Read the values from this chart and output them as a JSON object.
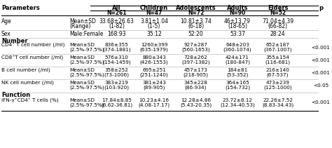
{
  "title": "Parameters",
  "columns": [
    "",
    "",
    "All",
    "Children",
    "Adolescents",
    "Adults",
    "Elders",
    "p"
  ],
  "col1_header": "All",
  "col2_header": "Children",
  "col3_header": "Adolescents",
  "col4_header": "Adults",
  "col5_header": "Elders",
  "n_row": [
    "N=261",
    "N=47",
    "N=72",
    "N=90",
    "N=52"
  ],
  "rows": [
    {
      "label": "Age",
      "sub1": "Mean±SD",
      "sub2": "(Range)",
      "vals1": [
        "33.68±26.63",
        "3.81±1.04",
        "10.81±3.74",
        "46±13.79",
        "71.04±4.39"
      ],
      "vals2": [
        "(1-82)",
        "(1-5)",
        "(6-18)",
        "(18-65)",
        "(66-82)"
      ],
      "p": ""
    },
    {
      "label": "Sex",
      "sub1": "Male:Female",
      "sub2": "",
      "vals1": [
        "168:93",
        "35:12",
        "52:20",
        "53:37",
        "28:24"
      ],
      "vals2": [
        "",
        "",
        "",
        "",
        ""
      ],
      "p": ""
    },
    {
      "section": "Number"
    },
    {
      "label": "CD4⁺ T cell number (/ml)",
      "sub1": "Mean±SD",
      "sub2": "(2.5%-97.5%)",
      "vals1": [
        "836±355",
        "1260±399",
        "927±287",
        "648±203",
        "652±187"
      ],
      "vals2": [
        "(374-1881)",
        "(635-1979)",
        "(560-1653)",
        "(360-1074)",
        "(367-1007)"
      ],
      "p": "<0.001"
    },
    {
      "label": "CD8⁺T cell number (/ml)",
      "sub1": "Mean±SD",
      "sub2": "(2.5%-97.5%)",
      "vals1": [
        "576±310",
        "880±343",
        "728±262",
        "424±171",
        "355±154"
      ],
      "vals2": [
        "(154-1459)",
        "(426-1553)",
        "(397-1382)",
        "(180-847)",
        "(116-681)"
      ],
      "p": "<0.001"
    },
    {
      "label": "B cell number (/ml)",
      "sub1": "Mean±SD",
      "sub2": "(2.5%-97.5%)",
      "vals1": [
        "358±252",
        "695±251",
        "457±173",
        "184±81",
        "216±140"
      ],
      "vals2": [
        "(73-1006)",
        "(251-1240)",
        "(218-905)",
        "(53-352)",
        "(67-537)"
      ],
      "p": "<0.001"
    },
    {
      "label": "NK cell number (/ml)",
      "sub1": "Mean±SD",
      "sub2": "(2.5%-97.5%)",
      "vals1": [
        "383±219",
        "381±243",
        "345±228",
        "364±165",
        "473±239"
      ],
      "vals2": [
        "(103-920)",
        "(89-905)",
        "(86-934)",
        "(154-732)",
        "(125-1000)"
      ],
      "p": "<0.05"
    },
    {
      "section": "Function"
    },
    {
      "label": "IFN-γ⁺CD4⁺ T cells (%)",
      "sub1": "Mean±SD",
      "sub2": "(2.5%-97.5%)",
      "vals1": [
        "17.84±8.85",
        "10.23±4.16",
        "12.28±4.86",
        "23.72±8.12",
        "22.26±7.52"
      ],
      "vals2": [
        "(6.62-36.81)",
        "(4.08-17.17)",
        "(5.43-20.35)",
        "(12.34-40.53)",
        "(8.83-34.43)"
      ],
      "p": "<0.001"
    }
  ],
  "bg_color": "#f5f5f0",
  "header_bg": "#d0cfc8",
  "section_color": "#2c2c2c",
  "text_color": "#1a1a1a"
}
